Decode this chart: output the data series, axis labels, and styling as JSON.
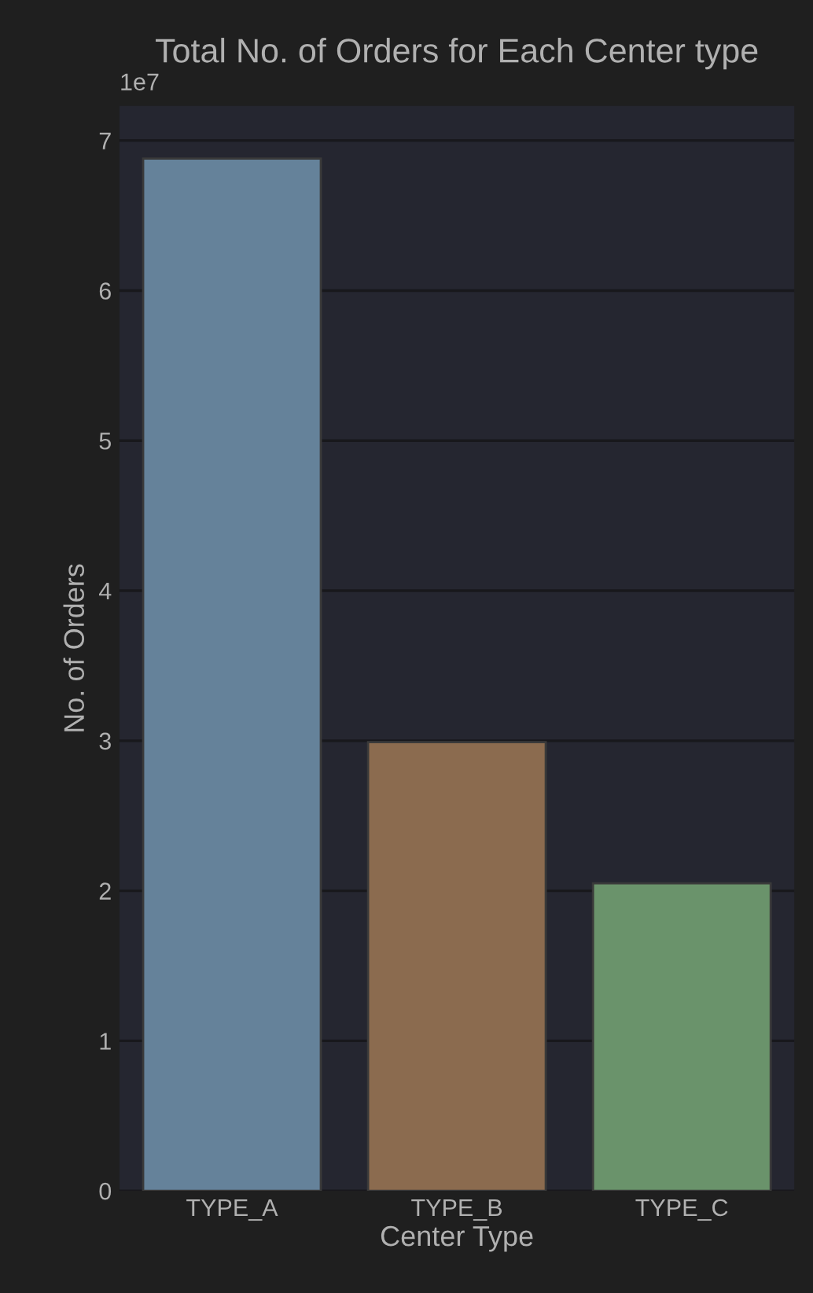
{
  "chart_data": {
    "type": "bar",
    "title": "Total No. of Orders for Each Center type",
    "xlabel": "Center Type",
    "ylabel": "No. of Orders",
    "categories": [
      "TYPE_A",
      "TYPE_B",
      "TYPE_C"
    ],
    "values": [
      6.88,
      2.99,
      2.05
    ],
    "colors": [
      "#65829a",
      "#8b6b4f",
      "#6a936b"
    ],
    "ylim": [
      0,
      7.23
    ],
    "yticks": [
      0,
      1,
      2,
      3,
      4,
      5,
      6,
      7
    ],
    "annotations": [
      "1e7"
    ],
    "grid": "y"
  }
}
